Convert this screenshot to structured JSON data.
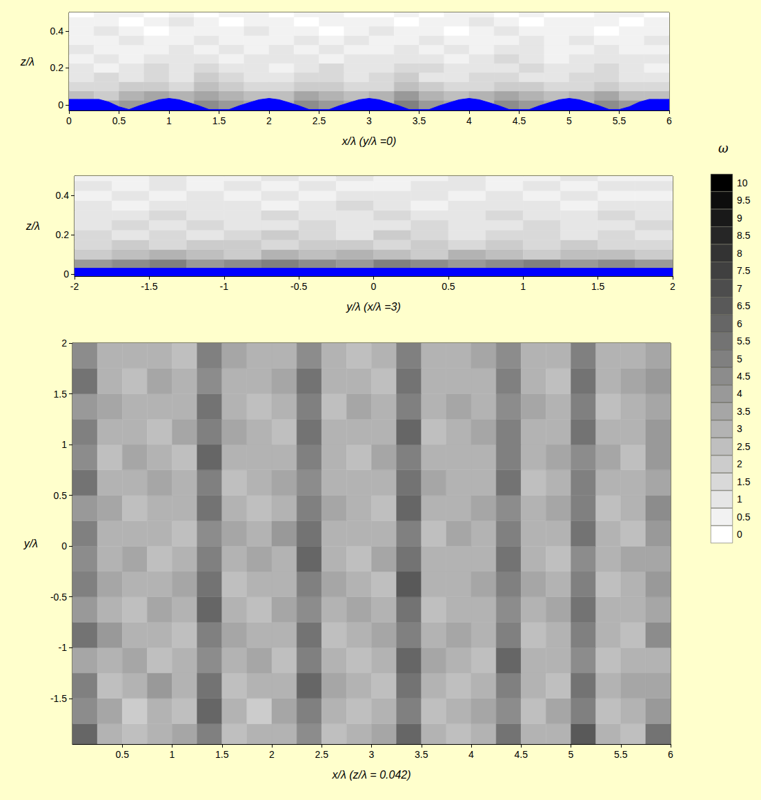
{
  "chart_data": [
    {
      "type": "heatmap",
      "x_label": "x/λ (y/λ =0)",
      "y_label": "z/λ",
      "xlim": [
        0,
        6
      ],
      "ylim": [
        -0.03,
        0.5
      ],
      "xticks": [
        0,
        0.5,
        1,
        1.5,
        2,
        2.5,
        3,
        3.5,
        4,
        4.5,
        5,
        5.5,
        6
      ],
      "yticks": [
        0,
        0.2,
        0.4
      ],
      "grid": false,
      "cells": {
        "x": [
          0.125,
          0.375,
          0.625,
          0.875,
          1.125,
          1.375,
          1.625,
          1.875,
          2.125,
          2.375,
          2.625,
          2.875,
          3.125,
          3.375,
          3.625,
          3.875,
          4.125,
          4.375,
          4.625,
          4.875,
          5.125,
          5.375,
          5.625,
          5.875
        ],
        "y": [
          0,
          0.05,
          0.1,
          0.15,
          0.2,
          0.25,
          0.3,
          0.35,
          0.4,
          0.45,
          0.5
        ],
        "values": [
          [
            3,
            3.5,
            4,
            4,
            3,
            4.5,
            4,
            3.5,
            3,
            4.5,
            4,
            3.5,
            3,
            5,
            4,
            3.5,
            3,
            4.5,
            4,
            3.5,
            3,
            4.5,
            4,
            3
          ],
          [
            2.5,
            2,
            3,
            3.5,
            3,
            3.5,
            3,
            2.5,
            2.5,
            3.5,
            3,
            2.5,
            3,
            4,
            3,
            2.5,
            3,
            3.5,
            3,
            2.5,
            3,
            3.5,
            2.5,
            2.5
          ],
          [
            1.5,
            1.5,
            2,
            2,
            1.5,
            2.5,
            2,
            1.5,
            1.5,
            2,
            2,
            1.5,
            1.5,
            2.5,
            2,
            1.5,
            1.5,
            2,
            2,
            1.5,
            1.5,
            2,
            1.5,
            1.5
          ],
          [
            1,
            1.5,
            1,
            1.5,
            1,
            2,
            1.5,
            1,
            1,
            1.5,
            1.5,
            1,
            1.5,
            2,
            1,
            1,
            1.5,
            1.5,
            1,
            1,
            1.5,
            1.5,
            1,
            1
          ],
          [
            1,
            0.5,
            1,
            1.5,
            1,
            1.5,
            1,
            1,
            0.5,
            1,
            1.5,
            1,
            1,
            1.5,
            1.5,
            1,
            1,
            1,
            1.5,
            1,
            1,
            1.5,
            1,
            0.5
          ],
          [
            0.5,
            1,
            0.5,
            1,
            1,
            1,
            0.5,
            1,
            1,
            1,
            0.5,
            1,
            1,
            1,
            1,
            0.5,
            1,
            1.5,
            1,
            0.5,
            1,
            1,
            1,
            1
          ],
          [
            1,
            0.5,
            0.5,
            0.5,
            1,
            0.5,
            1,
            0.5,
            1,
            0.5,
            1,
            0.5,
            0.5,
            1,
            0.5,
            1,
            0.5,
            1,
            1,
            0.5,
            0.5,
            1,
            0.5,
            0.5
          ],
          [
            0.5,
            0.5,
            1,
            0.5,
            0.5,
            1,
            0.5,
            0.5,
            0.5,
            1,
            0.5,
            1,
            0.5,
            0.5,
            1,
            0.5,
            0.5,
            0.5,
            1,
            0.5,
            1,
            0.5,
            0.5,
            1
          ],
          [
            0.5,
            1,
            0.5,
            0,
            0.5,
            0.5,
            0.5,
            1,
            0.5,
            0.5,
            0,
            0.5,
            1,
            0.5,
            0.5,
            0,
            0.5,
            1,
            0.5,
            0.5,
            0.5,
            0,
            0.5,
            0.5
          ],
          [
            0.5,
            0.5,
            0,
            0.5,
            1,
            0.5,
            0,
            0.5,
            0.5,
            0,
            0.5,
            0.5,
            0.5,
            0,
            0.5,
            0.5,
            1,
            0.5,
            0,
            0.5,
            0.5,
            0.5,
            0,
            0.5
          ],
          [
            0,
            0.5,
            0.5,
            0,
            0.5,
            0,
            0.5,
            0.5,
            0,
            0.5,
            0.5,
            0,
            0,
            0.5,
            0,
            0.5,
            0.5,
            0,
            0.5,
            0,
            0,
            0.5,
            0.5,
            0
          ]
        ]
      },
      "wall": {
        "color": "#0000ff",
        "x": [
          0,
          0.1,
          0.2,
          0.3,
          0.4,
          0.5,
          0.6,
          0.7,
          0.8,
          0.9,
          1,
          1.1,
          1.2,
          1.3,
          1.4,
          1.5,
          1.6,
          1.7,
          1.8,
          1.9,
          2,
          2.1,
          2.2,
          2.3,
          2.4,
          2.5,
          2.6,
          2.7,
          2.8,
          2.9,
          3,
          3.1,
          3.2,
          3.3,
          3.4,
          3.5,
          3.6,
          3.7,
          3.8,
          3.9,
          4,
          4.1,
          4.2,
          4.3,
          4.4,
          4.5,
          4.6,
          4.7,
          4.8,
          4.9,
          5,
          5.1,
          5.2,
          5.3,
          5.4,
          5.5,
          5.6,
          5.7,
          5.8,
          5.9,
          6
        ],
        "y": [
          0.03,
          0.03,
          0.03,
          0.03,
          0.015,
          -0.01,
          -0.025,
          -0.005,
          0.012,
          0.028,
          0.035,
          0.028,
          0.012,
          -0.005,
          -0.025,
          -0.025,
          -0.025,
          -0.005,
          0.012,
          0.028,
          0.035,
          0.028,
          0.012,
          -0.005,
          -0.025,
          -0.025,
          -0.025,
          -0.005,
          0.012,
          0.028,
          0.035,
          0.028,
          0.012,
          -0.005,
          -0.025,
          -0.025,
          -0.025,
          -0.005,
          0.012,
          0.028,
          0.035,
          0.028,
          0.012,
          -0.005,
          -0.025,
          -0.025,
          -0.025,
          -0.005,
          0.012,
          0.028,
          0.035,
          0.028,
          0.012,
          -0.005,
          -0.025,
          -0.025,
          -0.01,
          0.015,
          0.03,
          0.03,
          0.03
        ]
      }
    },
    {
      "type": "heatmap",
      "x_label": "y/λ (x/λ =3)",
      "y_label": "z/λ",
      "xlim": [
        -2,
        2
      ],
      "ylim": [
        -0.01,
        0.5
      ],
      "xticks": [
        -2,
        -1.5,
        -1,
        -0.5,
        0,
        0.5,
        1,
        1.5,
        2
      ],
      "yticks": [
        0,
        0.2,
        0.4
      ],
      "grid": false,
      "cells": {
        "x": [
          -1.875,
          -1.625,
          -1.375,
          -1.125,
          -0.875,
          -0.625,
          -0.375,
          -0.125,
          0.125,
          0.375,
          0.625,
          0.875,
          1.125,
          1.375,
          1.625,
          1.875
        ],
        "y": [
          0,
          0.05,
          0.1,
          0.15,
          0.2,
          0.25,
          0.3,
          0.35,
          0.4,
          0.45,
          0.5
        ],
        "values": [
          [
            5,
            5,
            5.5,
            5,
            5,
            6,
            5,
            5.5,
            5,
            5,
            5.5,
            5,
            5,
            5.5,
            5,
            5
          ],
          [
            4,
            4.5,
            5,
            4,
            4.5,
            5,
            4.5,
            4,
            5,
            4.5,
            4,
            4.5,
            5,
            4,
            4.5,
            4
          ],
          [
            2,
            2.5,
            3,
            2.5,
            2,
            3,
            2.5,
            3,
            2.5,
            2,
            3,
            2.5,
            2,
            2.5,
            2.5,
            2
          ],
          [
            1.5,
            2,
            1.5,
            2,
            2,
            1.5,
            2,
            2,
            1.5,
            2,
            1.5,
            2,
            1.5,
            2,
            1.5,
            1.5
          ],
          [
            1.5,
            1,
            1.5,
            1,
            1.5,
            2,
            1.5,
            1,
            2,
            1.5,
            1,
            1.5,
            1.5,
            1,
            1.5,
            1
          ],
          [
            1,
            1.5,
            1,
            1.5,
            1,
            1,
            1.5,
            1,
            1,
            1.5,
            1,
            1,
            1.5,
            1,
            1,
            1.5
          ],
          [
            1,
            1,
            1.5,
            1,
            1,
            1.5,
            1,
            1,
            1.5,
            1,
            1,
            1.5,
            1,
            1,
            1.5,
            1
          ],
          [
            1,
            0.5,
            1,
            1,
            1,
            0.5,
            1,
            1.5,
            1,
            0.5,
            1,
            1,
            1,
            0.5,
            1,
            1
          ],
          [
            0.5,
            1,
            0.5,
            1,
            0.5,
            1,
            0.5,
            1,
            1,
            1,
            0.5,
            1,
            0.5,
            1,
            0.5,
            0.5
          ],
          [
            1,
            0.5,
            1,
            0.5,
            1,
            0.5,
            1,
            0.5,
            0.5,
            1,
            1,
            0.5,
            1,
            0.5,
            1,
            1
          ],
          [
            0.5,
            0.5,
            1,
            0.5,
            0.5,
            1,
            0.5,
            1,
            0.5,
            0.5,
            1,
            0.5,
            0.5,
            1,
            0.5,
            0.5
          ]
        ]
      },
      "wall": {
        "color": "#0000ff",
        "x": [
          -2,
          2
        ],
        "y": [
          0.03,
          0.03
        ]
      }
    },
    {
      "type": "heatmap",
      "x_label": "x/λ (z/λ = 0.042)",
      "y_label": "y/λ",
      "xlim": [
        0,
        6
      ],
      "ylim": [
        -1.95,
        2
      ],
      "xticks": [
        0.5,
        1,
        1.5,
        2,
        2.5,
        3,
        3.5,
        4,
        4.5,
        5,
        5.5,
        6
      ],
      "yticks": [
        -1.5,
        -1,
        -0.5,
        0,
        0.5,
        1,
        1.5,
        2
      ],
      "grid": false,
      "cells": {
        "x": [
          0.125,
          0.375,
          0.625,
          0.875,
          1.125,
          1.375,
          1.625,
          1.875,
          2.125,
          2.375,
          2.625,
          2.875,
          3.125,
          3.375,
          3.625,
          3.875,
          4.125,
          4.375,
          4.625,
          4.875,
          5.125,
          5.375,
          5.625,
          5.875
        ],
        "y": [
          -1.875,
          -1.625,
          -1.375,
          -1.125,
          -0.875,
          -0.625,
          -0.375,
          -0.125,
          0.125,
          0.375,
          0.625,
          0.875,
          1.125,
          1.375,
          1.625,
          1.875
        ],
        "values": [
          [
            6,
            3,
            2.5,
            3,
            3.5,
            5,
            2.5,
            3,
            3,
            4.5,
            2.5,
            3,
            3.5,
            6,
            3,
            2.5,
            3,
            5.5,
            3,
            3,
            6.5,
            3,
            2.5,
            5.5
          ],
          [
            4.5,
            3.5,
            2,
            3,
            2.5,
            6,
            3,
            2,
            3.5,
            5,
            3,
            2.5,
            3,
            5,
            2.5,
            3,
            3.5,
            4.5,
            2.5,
            3.5,
            5,
            2.5,
            3,
            4
          ],
          [
            5,
            2.5,
            3,
            4,
            3,
            5.5,
            2.5,
            3,
            3,
            6,
            3.5,
            3,
            2.5,
            5.5,
            3,
            2.5,
            3,
            5,
            3,
            2.5,
            5.5,
            3,
            3.5,
            3.5
          ],
          [
            3.5,
            3,
            3.5,
            2.5,
            3,
            4.5,
            3,
            3.5,
            2.5,
            5,
            3,
            2.5,
            3,
            6,
            3.5,
            3,
            2.5,
            6,
            3,
            3,
            4.5,
            2.5,
            3,
            3
          ],
          [
            5.5,
            4,
            3,
            3,
            2.5,
            5,
            3.5,
            3,
            3,
            5.5,
            2.5,
            3,
            3.5,
            5,
            3,
            3.5,
            3,
            5,
            2.5,
            3,
            5,
            3,
            2.5,
            4.5
          ],
          [
            4,
            3,
            2.5,
            3.5,
            3,
            6,
            3,
            2.5,
            3.5,
            4.5,
            3,
            3.5,
            3,
            5.5,
            2.5,
            3,
            3,
            4.5,
            3,
            3.5,
            5.5,
            3,
            3,
            3.5
          ],
          [
            5,
            3.5,
            3,
            3,
            3.5,
            5.5,
            2.5,
            3,
            3,
            5,
            3.5,
            3,
            2.5,
            6.5,
            3,
            3,
            3.5,
            5,
            3.5,
            3,
            5,
            2.5,
            3,
            4
          ],
          [
            4.5,
            3,
            3.5,
            2.5,
            3,
            5,
            3,
            3.5,
            3,
            6,
            3,
            2.5,
            3.5,
            5.5,
            3,
            3,
            3,
            5.5,
            3,
            2.5,
            4.5,
            3,
            3.5,
            3.5
          ],
          [
            5,
            3,
            3,
            3,
            2.5,
            4.5,
            3.5,
            3,
            4,
            5.5,
            3,
            3,
            3,
            5,
            2.5,
            3.5,
            3,
            5,
            3,
            3,
            5.5,
            3,
            2.5,
            4
          ],
          [
            4,
            3.5,
            2.5,
            3,
            3,
            5.5,
            3,
            2.5,
            3,
            5,
            3.5,
            3,
            2.5,
            6,
            3,
            3,
            3.5,
            4.5,
            3,
            3.5,
            5,
            2.5,
            3,
            4.5
          ],
          [
            5.5,
            3,
            3,
            3.5,
            3,
            5,
            2.5,
            3,
            3.5,
            4.5,
            3,
            3,
            3,
            5.5,
            3.5,
            3,
            3,
            5.5,
            2.5,
            3,
            5,
            3,
            3,
            3.5
          ],
          [
            4.5,
            2.5,
            3.5,
            3,
            2.5,
            6,
            3,
            3,
            3,
            5,
            3,
            2.5,
            3.5,
            5,
            3,
            3,
            3,
            5,
            3,
            3.5,
            4.5,
            3.5,
            2.5,
            4
          ],
          [
            5,
            3,
            3,
            2.5,
            3.5,
            5,
            3.5,
            3,
            2.5,
            5.5,
            3,
            3,
            3,
            6,
            2.5,
            3,
            3.5,
            5,
            3,
            3,
            5.5,
            3,
            3,
            4
          ],
          [
            4,
            3.5,
            3,
            3,
            3,
            5.5,
            3,
            2.5,
            3,
            5,
            2.5,
            3.5,
            3,
            5,
            3,
            3.5,
            3,
            4.5,
            3.5,
            3,
            5,
            2.5,
            3,
            3.5
          ],
          [
            5.5,
            3,
            2.5,
            3.5,
            3,
            4.5,
            3,
            3,
            3.5,
            5.5,
            3,
            3,
            2.5,
            5.5,
            3,
            3,
            3,
            5,
            3,
            2.5,
            5.5,
            3,
            3.5,
            4
          ],
          [
            4.5,
            3,
            3,
            3,
            2.5,
            5,
            3.5,
            3,
            3,
            4.5,
            3,
            2.5,
            3,
            5,
            3,
            3,
            3.5,
            4.5,
            3,
            3,
            5,
            3,
            3,
            3.5
          ]
        ]
      }
    }
  ],
  "colorbar": {
    "title": "ω",
    "levels": [
      0,
      0.5,
      1,
      1.5,
      2,
      2.5,
      3,
      3.5,
      4,
      4.5,
      5,
      5.5,
      6,
      6.5,
      7,
      7.5,
      8,
      8.5,
      9,
      9.5,
      10
    ]
  }
}
